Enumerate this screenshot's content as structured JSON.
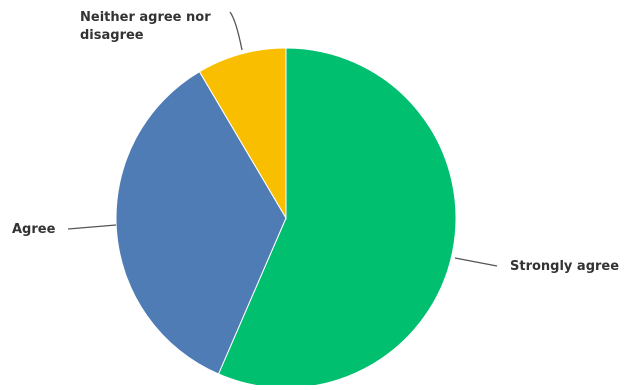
{
  "chart_data": {
    "type": "pie",
    "slices": [
      {
        "label": "Strongly agree",
        "value": 56.5,
        "color": "#00bf6f"
      },
      {
        "label": "Agree",
        "value": 35.0,
        "color": "#507cb6"
      },
      {
        "label": "Neither agree nor disagree",
        "label_lines": [
          "Neither agree nor",
          "disagree"
        ],
        "value": 8.5,
        "color": "#f9be00"
      }
    ],
    "start_angle_deg": 0,
    "direction": "clockwise"
  }
}
